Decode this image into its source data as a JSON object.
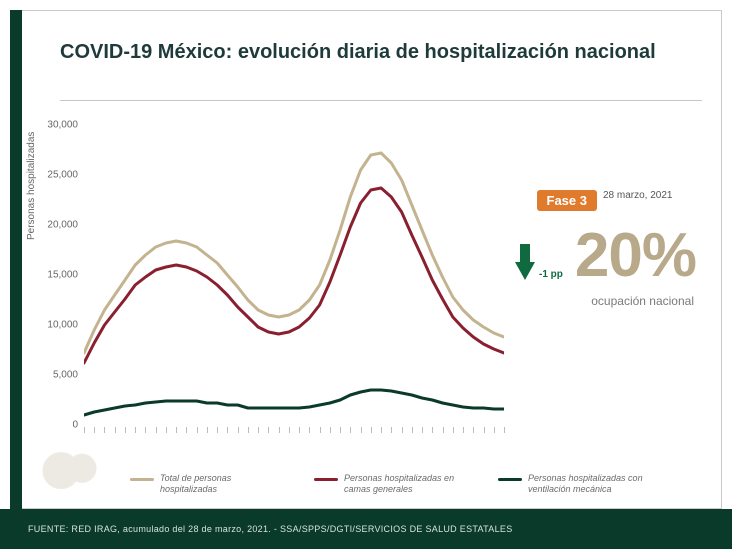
{
  "title": "COVID-19 México: evolución diaria de hospitalización nacional",
  "chart": {
    "type": "line",
    "y_axis_label": "Personas hospitalizadas",
    "ylim": [
      0,
      30000
    ],
    "ytick_step": 5000,
    "y_ticks": [
      "0",
      "5,000",
      "10,000",
      "15,000",
      "20,000",
      "25,000",
      "30,000"
    ],
    "x_tick_count": 42,
    "background_color": "#ffffff",
    "line_width": 3,
    "series": [
      {
        "key": "total",
        "color": "#c3b38e",
        "values": [
          7200,
          9500,
          11500,
          13000,
          14500,
          16000,
          17000,
          17800,
          18200,
          18400,
          18200,
          17800,
          17000,
          16200,
          15000,
          13800,
          12500,
          11500,
          11000,
          10800,
          11000,
          11500,
          12500,
          14000,
          16500,
          19500,
          22800,
          25500,
          27000,
          27200,
          26200,
          24500,
          22000,
          19500,
          17000,
          14800,
          12800,
          11500,
          10500,
          9800,
          9200,
          8800
        ]
      },
      {
        "key": "generales",
        "color": "#8a1f2f",
        "values": [
          6200,
          8200,
          10000,
          11300,
          12600,
          14000,
          14800,
          15500,
          15800,
          16000,
          15800,
          15400,
          14800,
          14000,
          13000,
          11800,
          10800,
          9800,
          9300,
          9100,
          9300,
          9800,
          10700,
          12000,
          14300,
          17000,
          19800,
          22200,
          23500,
          23700,
          22800,
          21300,
          19000,
          16800,
          14500,
          12600,
          10800,
          9700,
          8800,
          8100,
          7600,
          7200
        ]
      },
      {
        "key": "ventilacion",
        "color": "#0a3a2a",
        "values": [
          1000,
          1300,
          1500,
          1700,
          1900,
          2000,
          2200,
          2300,
          2400,
          2400,
          2400,
          2400,
          2200,
          2200,
          2000,
          2000,
          1700,
          1700,
          1700,
          1700,
          1700,
          1700,
          1800,
          2000,
          2200,
          2500,
          3000,
          3300,
          3500,
          3500,
          3400,
          3200,
          3000,
          2700,
          2500,
          2200,
          2000,
          1800,
          1700,
          1700,
          1600,
          1600
        ]
      }
    ]
  },
  "phase": {
    "label": "Fase 3",
    "date": "28 marzo, 2021",
    "badge_bg": "#e07b2e"
  },
  "occupancy": {
    "value": "20%",
    "label": "ocupación nacional",
    "delta": "-1 pp",
    "value_color": "#b7a98a",
    "arrow_color": "#0f6b3f"
  },
  "legend": {
    "items": [
      {
        "label": "Total de personas hospitalizadas",
        "color": "#c3b38e"
      },
      {
        "label": "Personas hospitalizadas en camas generales",
        "color": "#8a1f2f"
      },
      {
        "label": "Personas hospitalizadas con ventilación mecánica",
        "color": "#0a3a2a"
      }
    ]
  },
  "footer": "FUENTE: RED IRAG, acumulado del 28 de marzo, 2021.  -  SSA/SPPS/DGTI/SERVICIOS DE SALUD ESTATALES"
}
